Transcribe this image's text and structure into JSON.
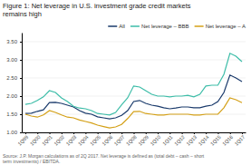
{
  "chart_data": {
    "type": "line",
    "title": "Figure 1: Net leverage in U.S. investment grade credit markets\nremains high",
    "annotations": [
      "Source: J.P. Morgan calculations as of 2Q 2017. Net leverage is defined as (total debt – cash – short\nterm investments) / EBITDA."
    ],
    "categories": [
      "1Q99",
      null,
      "1Q00",
      null,
      "1Q01",
      null,
      "1Q02",
      null,
      "1Q03",
      null,
      "1Q04",
      null,
      "1Q05",
      null,
      "1Q06",
      null,
      "1Q07",
      null,
      "1Q08",
      null,
      "1Q09",
      null,
      "1Q10",
      null,
      "1Q11",
      null,
      "1Q12",
      null,
      "1Q13",
      null,
      "1Q14",
      null,
      "1Q15",
      null,
      "1Q16",
      null,
      "1Q17"
    ],
    "series": [
      {
        "name": "All",
        "color": "#1a3a6b",
        "values": [
          1.52,
          1.53,
          1.58,
          1.62,
          1.82,
          1.83,
          1.8,
          1.75,
          1.7,
          1.6,
          1.53,
          1.5,
          1.43,
          1.4,
          1.37,
          1.4,
          1.47,
          1.6,
          1.85,
          1.88,
          1.8,
          1.75,
          1.72,
          1.68,
          1.65,
          1.67,
          1.7,
          1.7,
          1.68,
          1.68,
          1.72,
          1.75,
          1.85,
          2.1,
          2.58,
          2.5,
          2.4
        ]
      },
      {
        "name": "Net leverage – BBB",
        "color": "#3dbda8",
        "values": [
          1.77,
          1.8,
          1.88,
          1.98,
          2.15,
          2.1,
          1.95,
          1.85,
          1.72,
          1.67,
          1.65,
          1.6,
          1.52,
          1.5,
          1.48,
          1.55,
          1.76,
          1.95,
          2.28,
          2.25,
          2.15,
          2.05,
          2.0,
          2.0,
          1.98,
          2.0,
          2.0,
          2.02,
          1.98,
          2.05,
          2.28,
          2.3,
          2.3,
          2.6,
          3.18,
          3.1,
          2.95
        ]
      },
      {
        "name": "Net leverage – A",
        "color": "#d4a017",
        "values": [
          1.5,
          1.45,
          1.42,
          1.48,
          1.6,
          1.55,
          1.48,
          1.42,
          1.4,
          1.34,
          1.3,
          1.26,
          1.2,
          1.16,
          1.12,
          1.15,
          1.22,
          1.38,
          1.57,
          1.58,
          1.52,
          1.5,
          1.48,
          1.48,
          1.5,
          1.5,
          1.5,
          1.5,
          1.48,
          1.48,
          1.5,
          1.5,
          1.5,
          1.68,
          1.95,
          1.9,
          1.82
        ]
      }
    ],
    "ylim": [
      1.0,
      3.75
    ],
    "yticks": [
      {
        "value": 1.0,
        "label": "1.00"
      },
      {
        "value": 1.5,
        "label": "1.50"
      },
      {
        "value": 2.0,
        "label": "2.00"
      },
      {
        "value": 2.5,
        "label": "2.50"
      },
      {
        "value": 3.0,
        "label": "3.00"
      },
      {
        "value": 3.5,
        "label": "3.50"
      }
    ],
    "grid": true,
    "legend": "upper right"
  }
}
